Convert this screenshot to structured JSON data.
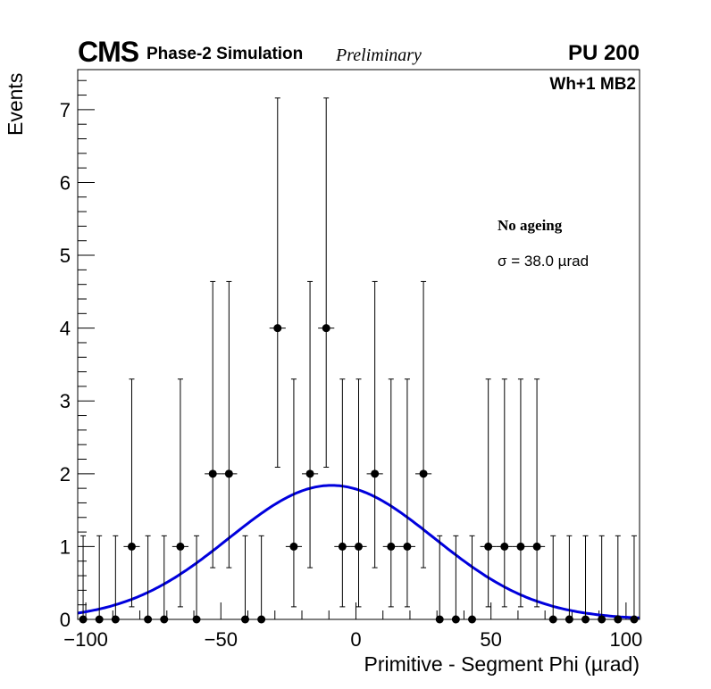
{
  "header": {
    "experiment": "CMS",
    "simulation": "Phase-2 Simulation",
    "status": "Preliminary",
    "pileup": "PU 200",
    "station": "Wh+1 MB2"
  },
  "legend": {
    "condition": "No ageing",
    "sigma_text": "σ = 38.0  µrad"
  },
  "colors": {
    "fit": "#0000dd",
    "points": "#000000"
  },
  "chart_data": {
    "type": "scatter",
    "title": "",
    "xlabel": "Primitive - Segment Phi (µrad)",
    "ylabel": "Events",
    "xlim": [
      -103,
      105
    ],
    "ylim": [
      0,
      7.55
    ],
    "x_ticks": [
      -100,
      -50,
      0,
      50,
      100
    ],
    "x_tick_labels": [
      "−100",
      "−50",
      "0",
      "50",
      "100"
    ],
    "y_ticks": [
      0,
      1,
      2,
      3,
      4,
      5,
      6,
      7
    ],
    "y_tick_labels": [
      "0",
      "1",
      "2",
      "3",
      "4",
      "5",
      "6",
      "7"
    ],
    "grid": false,
    "bin_width": 6,
    "series": [
      {
        "kind": "histogram-points",
        "x": [
          -101,
          -95,
          -89,
          -83,
          -77,
          -71,
          -65,
          -59,
          -53,
          -47,
          -41,
          -35,
          -29,
          -23,
          -17,
          -11,
          -5,
          1,
          7,
          13,
          19,
          25,
          31,
          37,
          43,
          49,
          55,
          61,
          67,
          73,
          79,
          85,
          91,
          97,
          103
        ],
        "y": [
          0,
          0,
          0,
          1,
          0,
          0,
          1,
          0,
          2,
          2,
          0,
          0,
          4,
          1,
          2,
          4,
          1,
          1,
          2,
          1,
          1,
          2,
          0,
          0,
          0,
          1,
          1,
          1,
          1,
          0,
          0,
          0,
          0,
          0,
          0
        ]
      },
      {
        "kind": "gaussian-fit",
        "amplitude": 1.84,
        "mean": -9,
        "sigma": 38.0
      }
    ]
  }
}
